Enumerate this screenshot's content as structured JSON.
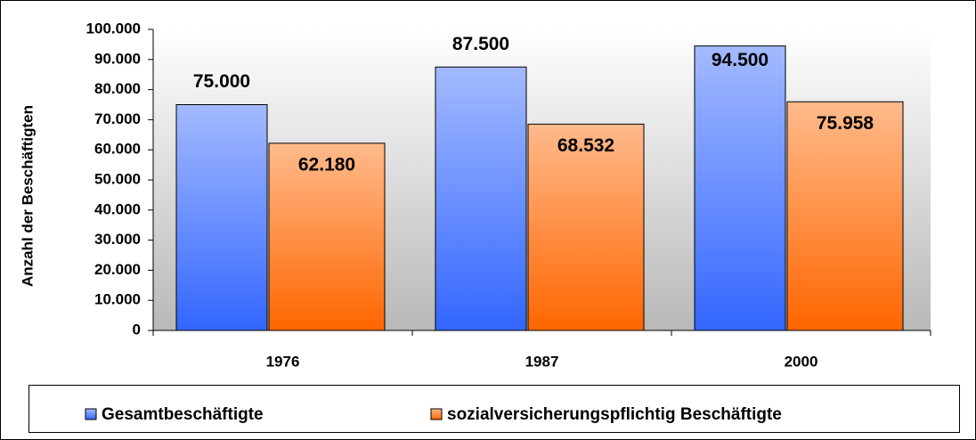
{
  "chart_data": {
    "type": "bar",
    "y_label": "Anzahl  der Beschäftigten",
    "categories": [
      "1976",
      "1987",
      "2000"
    ],
    "series": [
      {
        "name": "Gesamtbeschäftigte",
        "color": "#3366ff",
        "values": [
          75000,
          87500,
          94500
        ],
        "value_labels": [
          "75.000",
          "87.500",
          "94.500"
        ]
      },
      {
        "name": "sozialversicherungspflichtig Beschäftigte",
        "color": "#ff6600",
        "values": [
          62180,
          68532,
          75958
        ],
        "value_labels": [
          "62.180",
          "68.532",
          "75.958"
        ]
      }
    ],
    "ylim": [
      0,
      100000
    ],
    "yticks": [
      {
        "value": 0,
        "label": "0"
      },
      {
        "value": 10000,
        "label": "10.000"
      },
      {
        "value": 20000,
        "label": "20.000"
      },
      {
        "value": 30000,
        "label": "30.000"
      },
      {
        "value": 40000,
        "label": "40.000"
      },
      {
        "value": 50000,
        "label": "50.000"
      },
      {
        "value": 60000,
        "label": "60.000"
      },
      {
        "value": 70000,
        "label": "70.000"
      },
      {
        "value": 80000,
        "label": "80.000"
      },
      {
        "value": 90000,
        "label": "90.000"
      },
      {
        "value": 100000,
        "label": "100.000"
      }
    ],
    "grid": false,
    "legend": "bottom"
  }
}
